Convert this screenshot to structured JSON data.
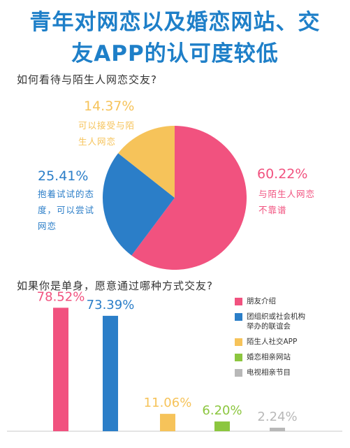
{
  "title": {
    "line1": "青年对网恋以及婚恋网站、交",
    "line2": "友APP的认可度较低"
  },
  "section1": {
    "question": "如何看待与陌生人网恋交友?"
  },
  "section2": {
    "question": "如果你是单身，愿意通过哪种方式交友?"
  },
  "chart_data": [
    {
      "type": "pie",
      "title": "如何看待与陌生人网恋交友?",
      "slices": [
        {
          "value": 60.22,
          "label": "60.22%",
          "text_lines": [
            "与陌生人网恋",
            "不靠谱"
          ],
          "color": "#f1527f"
        },
        {
          "value": 25.41,
          "label": "25.41%",
          "text_lines": [
            "抱着试试的态",
            "度，可以尝试",
            "网恋"
          ],
          "color": "#2b7ec8"
        },
        {
          "value": 14.37,
          "label": "14.37%",
          "text_lines": [
            "可以接受与陌",
            "生人网恋"
          ],
          "color": "#f6c35a"
        }
      ]
    },
    {
      "type": "bar",
      "title": "如果你是单身，愿意通过哪种方式交友?",
      "categories": [
        "朋友介绍",
        "团组织或社会机构举办的联谊会",
        "陌生人社交APP",
        "婚恋相亲网站",
        "电视相亲节目"
      ],
      "values": [
        78.52,
        73.39,
        11.06,
        6.2,
        2.24
      ],
      "value_labels": [
        "78.52%",
        "73.39%",
        "11.06%",
        "6.20%",
        "2.24%"
      ],
      "colors": [
        "#f1527f",
        "#2b7ec8",
        "#f6c35a",
        "#8cc63f",
        "#b8b8b8"
      ],
      "legend": {
        "position": "right",
        "items": [
          {
            "lines": [
              "朋友介绍"
            ]
          },
          {
            "lines": [
              "团组织或社会机构",
              "举办的联谊会"
            ]
          },
          {
            "lines": [
              "陌生人社交APP"
            ]
          },
          {
            "lines": [
              "婚恋相亲网站"
            ]
          },
          {
            "lines": [
              "电视相亲节目"
            ]
          }
        ]
      }
    }
  ]
}
